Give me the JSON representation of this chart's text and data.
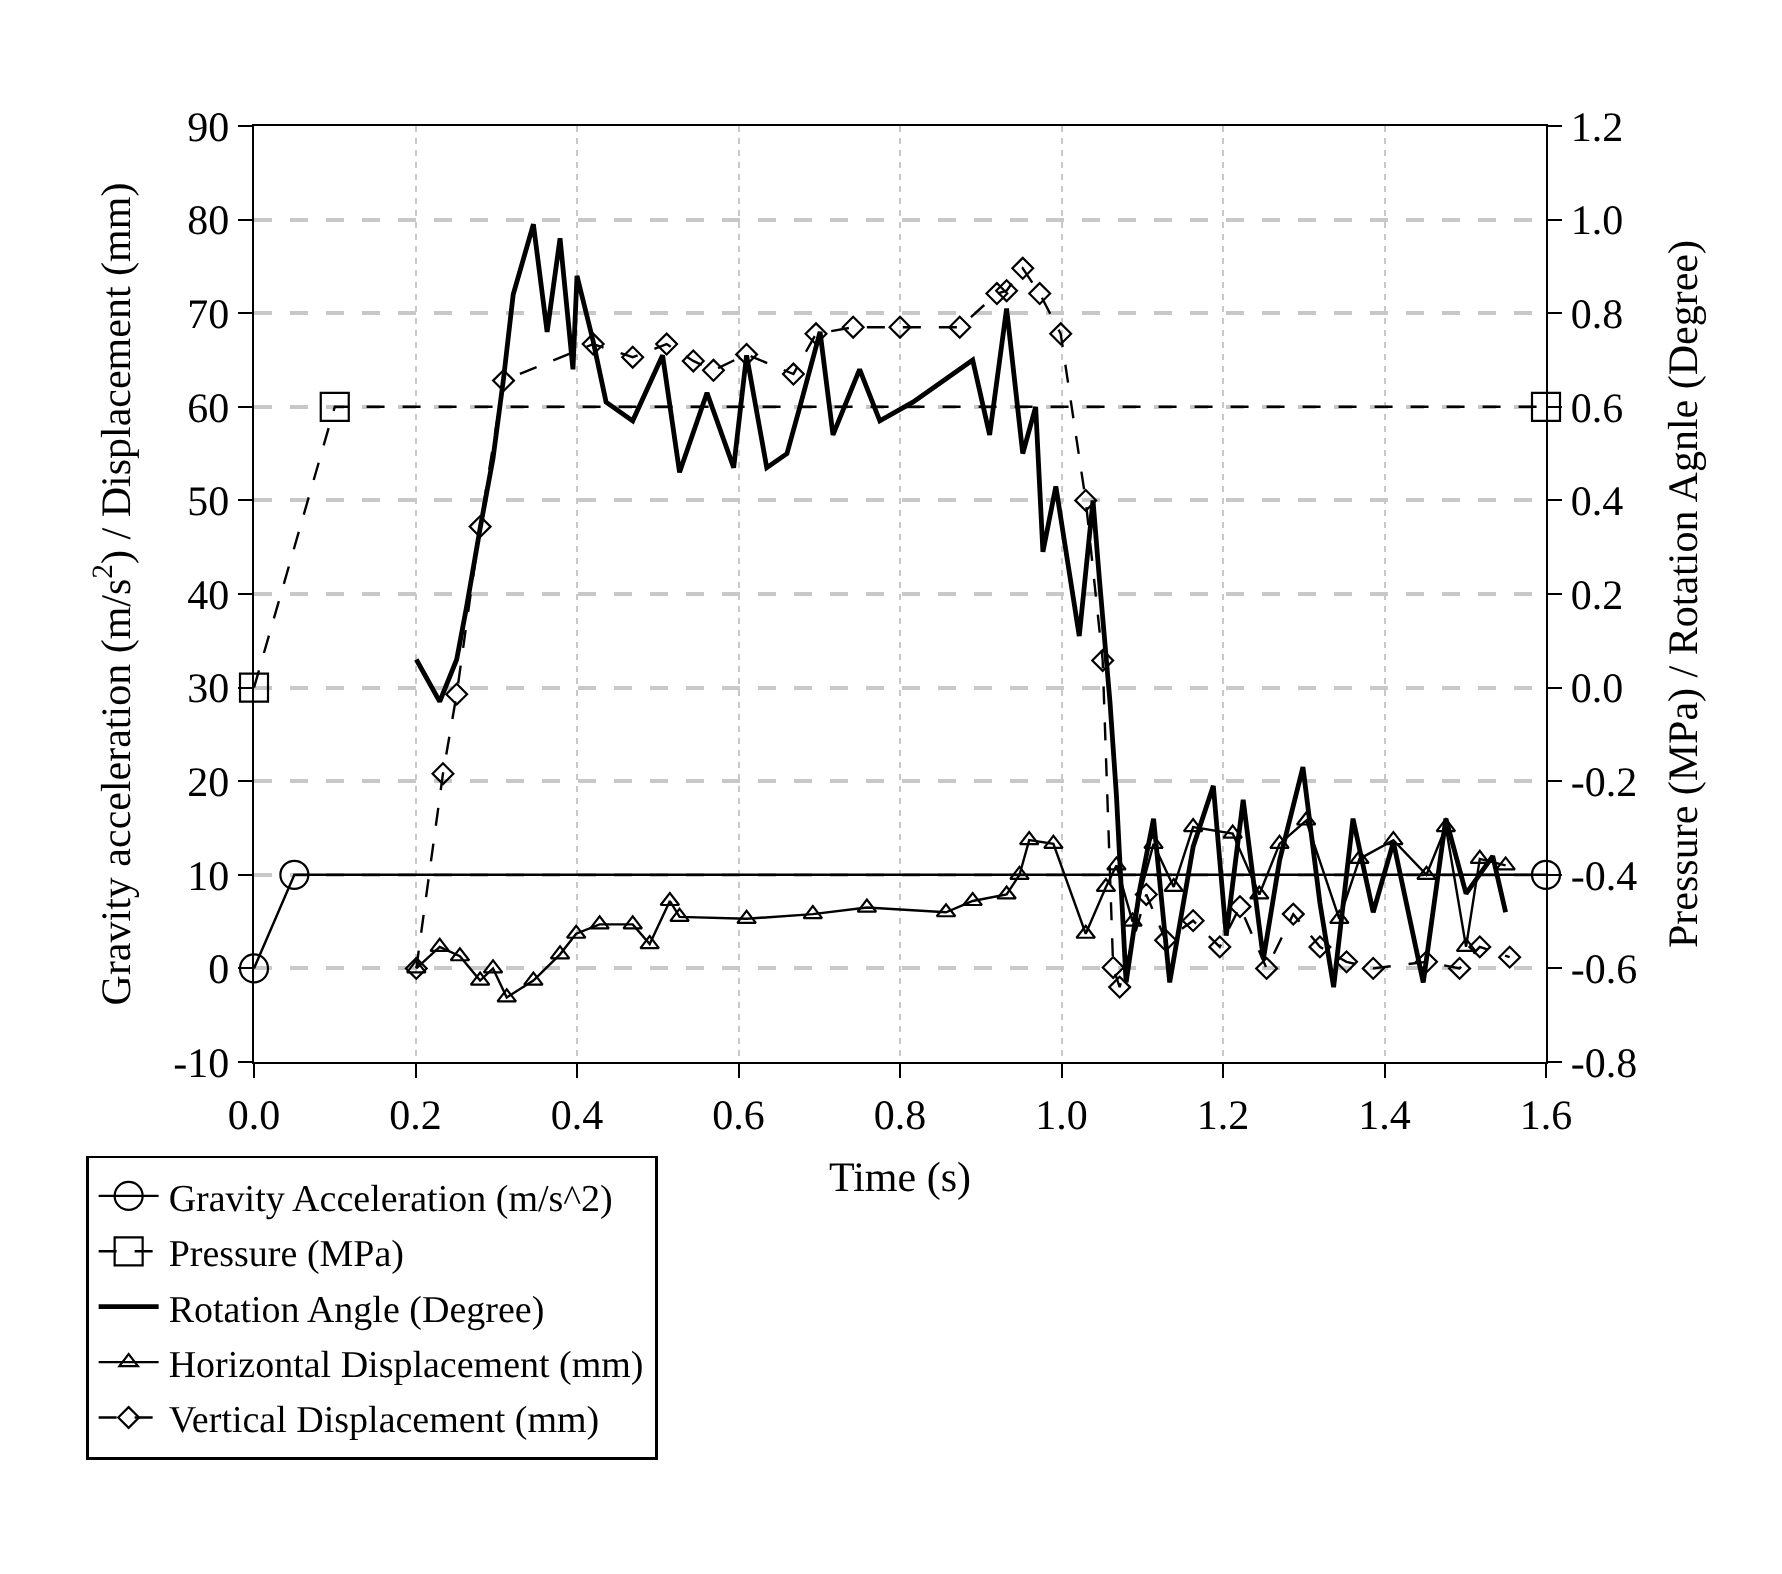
{
  "chart_data": {
    "type": "line",
    "xlabel": "Time (s)",
    "ylabel": "Gravity acceleration (m/s$^{2}$) / Displacement (mm)",
    "y2label": "Pressure (MPa) / Rotation Agnle (Degree)",
    "xlim": [
      0,
      1.6
    ],
    "xticks": [
      {
        "value": 0,
        "label": "0.0"
      },
      0.2,
      0.4,
      0.6,
      0.8,
      {
        "value": 1,
        "label": "1.0"
      },
      1.2,
      1.4,
      1.6
    ],
    "ylim": [
      -10,
      90
    ],
    "yticks": [
      -10,
      0,
      10,
      20,
      30,
      40,
      50,
      60,
      70,
      80,
      90
    ],
    "y2lim": [
      -0.8,
      1.2
    ],
    "y2ticks": [
      -0.8,
      -0.6,
      -0.4,
      -0.2,
      {
        "value": 0,
        "label": "0.0"
      },
      0.2,
      0.4,
      0.6,
      0.8,
      {
        "value": 1,
        "label": "1.0"
      },
      1.2
    ],
    "grid": true,
    "legend": "bottom left",
    "series": [
      {
        "name": "Gravity Acceleration (m/s^2)",
        "color": "#000000",
        "marker": "circle",
        "line_style": "solid",
        "x": [
          0,
          0.05,
          1.6
        ],
        "values": [
          0,
          10,
          10
        ]
      },
      {
        "name": "Pressure (MPa)",
        "color": "#000000",
        "marker": "square",
        "line_style": "dashed",
        "axis": "y2",
        "x": [
          0,
          0.1,
          1.6
        ],
        "values": [
          0,
          0.6,
          0.6
        ]
      },
      {
        "name": "Rotation Angle (Degree)",
        "color": "#000000",
        "marker": "none",
        "line_style": "solid",
        "axis": "y2",
        "x": [
          0.201,
          0.23,
          0.251,
          0.263,
          0.28,
          0.296,
          0.309,
          0.321,
          0.346,
          0.363,
          0.379,
          0.395,
          0.4,
          0.42,
          0.436,
          0.469,
          0.506,
          0.527,
          0.561,
          0.594,
          0.61,
          0.635,
          0.66,
          0.676,
          0.701,
          0.717,
          0.75,
          0.775,
          0.816,
          0.89,
          0.911,
          0.932,
          0.952,
          0.968,
          0.977,
          0.993,
          1.022,
          1.039,
          1.047,
          1.06,
          1.068,
          1.08,
          1.097,
          1.114,
          1.134,
          1.163,
          1.188,
          1.204,
          1.225,
          1.25,
          1.27,
          1.299,
          1.32,
          1.337,
          1.361,
          1.386,
          1.411,
          1.448,
          1.476,
          1.501,
          1.534,
          1.55
        ],
        "values": [
          0.06,
          -0.03,
          0.06,
          0.17,
          0.34,
          0.49,
          0.66,
          0.84,
          0.99,
          0.76,
          0.96,
          0.68,
          0.88,
          0.74,
          0.61,
          0.57,
          0.71,
          0.46,
          0.63,
          0.47,
          0.71,
          0.47,
          0.5,
          0.6,
          0.76,
          0.54,
          0.68,
          0.57,
          0.61,
          0.7,
          0.54,
          0.81,
          0.5,
          0.6,
          0.29,
          0.43,
          0.11,
          0.4,
          0.23,
          -0.03,
          -0.23,
          -0.63,
          -0.43,
          -0.28,
          -0.63,
          -0.34,
          -0.21,
          -0.53,
          -0.24,
          -0.58,
          -0.37,
          -0.17,
          -0.46,
          -0.64,
          -0.28,
          -0.48,
          -0.33,
          -0.63,
          -0.28,
          -0.44,
          -0.36,
          -0.48
        ]
      },
      {
        "name": "Horizontal Displacement (mm)",
        "color": "#000000",
        "marker": "triangle",
        "line_style": "solid",
        "x": [
          0.201,
          0.23,
          0.255,
          0.28,
          0.296,
          0.313,
          0.346,
          0.379,
          0.399,
          0.428,
          0.469,
          0.49,
          0.515,
          0.527,
          0.61,
          0.692,
          0.759,
          0.857,
          0.89,
          0.932,
          0.948,
          0.96,
          0.99,
          1.03,
          1.055,
          1.068,
          1.088,
          1.114,
          1.139,
          1.163,
          1.212,
          1.245,
          1.27,
          1.303,
          1.344,
          1.369,
          1.411,
          1.452,
          1.476,
          1.501,
          1.518,
          1.55
        ],
        "values": [
          0,
          2.3,
          1.3,
          -1.3,
          0,
          -3.1,
          -1.3,
          1.5,
          3.7,
          4.7,
          4.7,
          2.6,
          7.2,
          5.5,
          5.3,
          5.8,
          6.5,
          6,
          7.2,
          7.9,
          10,
          13.7,
          13.3,
          3.7,
          8.7,
          11,
          5,
          13.3,
          8.7,
          15.1,
          14.4,
          7.9,
          13.3,
          15.8,
          5.3,
          11.7,
          13.7,
          10,
          15.1,
          2.3,
          11.7,
          11
        ]
      },
      {
        "name": "Vertical Displacement (mm)",
        "color": "#000000",
        "marker": "diamond",
        "line_style": "dashed",
        "x": [
          0.201,
          0.234,
          0.251,
          0.28,
          0.309,
          0.42,
          0.469,
          0.511,
          0.544,
          0.569,
          0.61,
          0.668,
          0.696,
          0.742,
          0.8,
          0.874,
          0.92,
          0.932,
          0.952,
          0.973,
          0.999,
          1.03,
          1.051,
          1.064,
          1.072,
          1.105,
          1.129,
          1.163,
          1.196,
          1.221,
          1.254,
          1.287,
          1.32,
          1.353,
          1.386,
          1.452,
          1.493,
          1.518,
          1.555
        ],
        "values": [
          0,
          20.8,
          29.3,
          47.2,
          62.8,
          66.7,
          65.3,
          66.7,
          64.9,
          63.9,
          65.6,
          63.5,
          67.8,
          68.5,
          68.5,
          68.5,
          72.1,
          72.4,
          74.8,
          72.1,
          67.8,
          50,
          32.9,
          0.1,
          -2,
          7.9,
          3,
          5.1,
          2.3,
          6.6,
          0,
          5.8,
          2.3,
          0.7,
          0,
          0.7,
          0,
          2.3,
          1.2
        ]
      }
    ]
  }
}
